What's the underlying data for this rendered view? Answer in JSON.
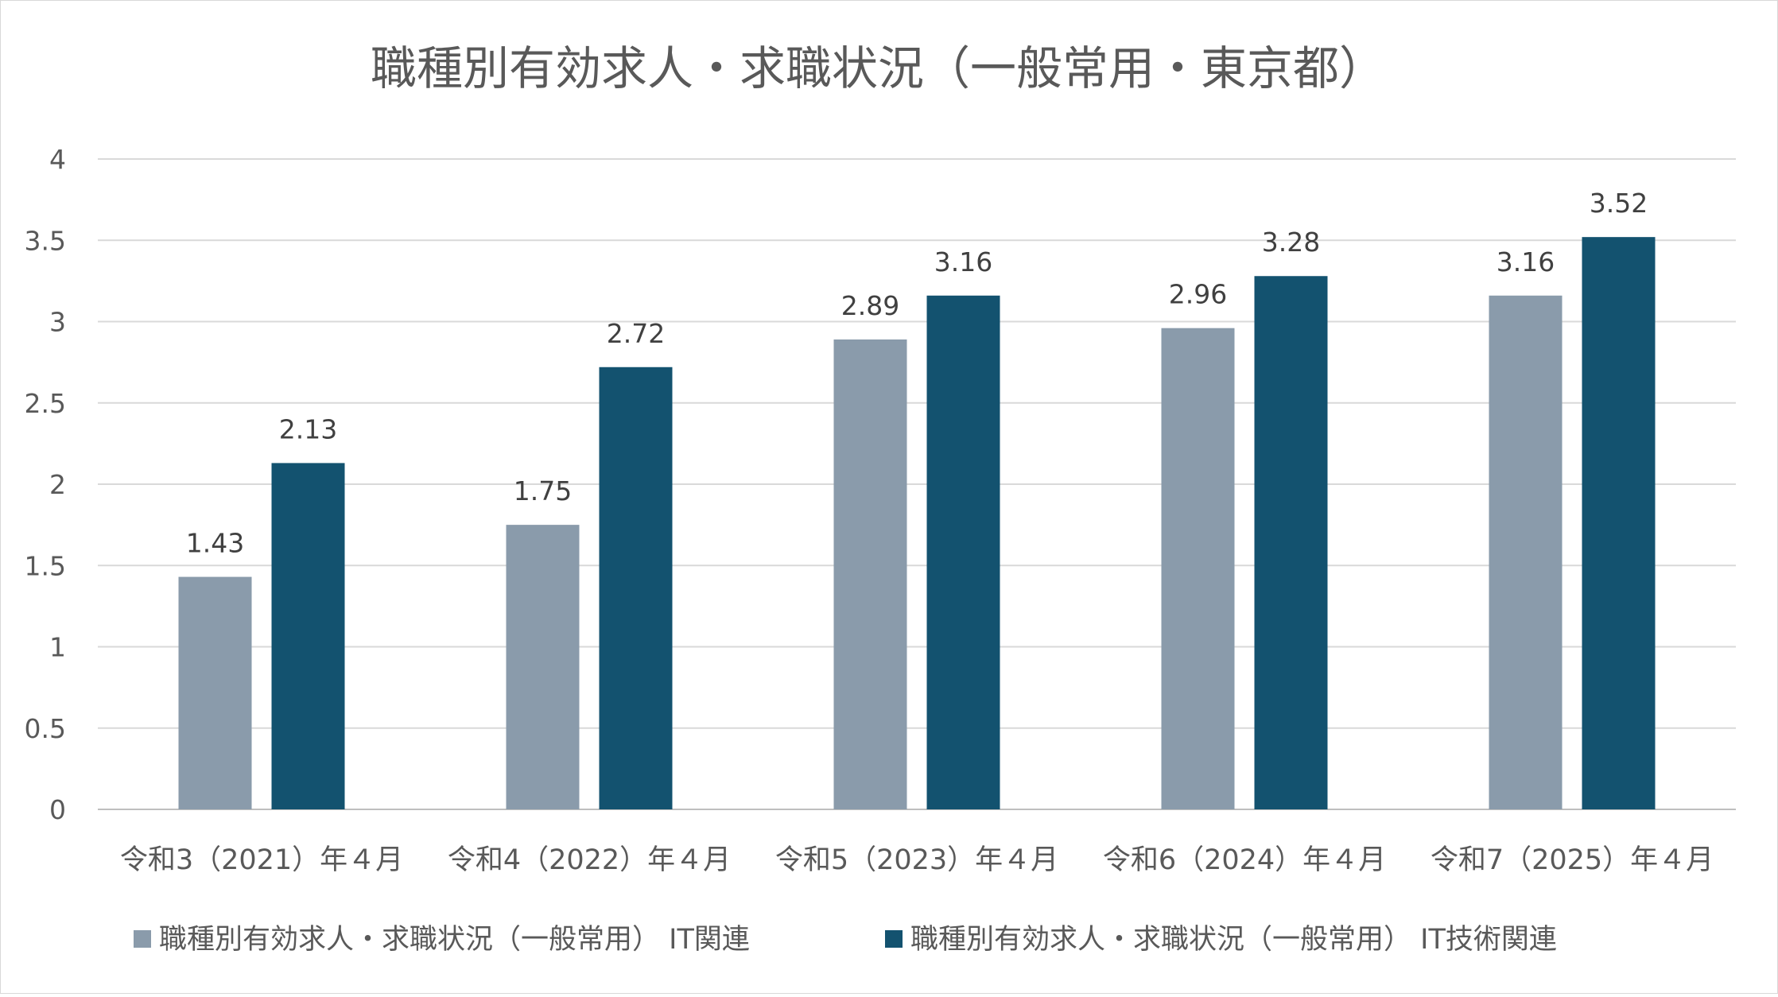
{
  "chart_data": {
    "type": "bar",
    "title": "職種別有効求人・求職状況（一般常用・東京都）",
    "xlabel": "",
    "ylabel": "",
    "categories": [
      "令和3（2021）年４月",
      "令和4（2022）年４月",
      "令和5（2023）年４月",
      "令和6（2024）年４月",
      "令和7（2025）年４月"
    ],
    "series": [
      {
        "name": "職種別有効求人・求職状況（一般常用） IT関連",
        "color": "#8a9bab",
        "values": [
          1.43,
          1.75,
          2.89,
          2.96,
          3.16
        ],
        "labels": [
          "1.43",
          "1.75",
          "2.89",
          "2.96",
          "3.16"
        ]
      },
      {
        "name": "職種別有効求人・求職状況（一般常用） IT技術関連",
        "color": "#13526f",
        "values": [
          2.13,
          2.72,
          3.16,
          3.28,
          3.52
        ],
        "labels": [
          "2.13",
          "2.72",
          "3.16",
          "3.28",
          "3.52"
        ]
      }
    ],
    "ylim": [
      0,
      4
    ],
    "yticks": [
      0,
      0.5,
      1,
      1.5,
      2,
      2.5,
      3,
      3.5,
      4
    ],
    "ytick_labels": [
      "0",
      "0.5",
      "1",
      "1.5",
      "2",
      "2.5",
      "3",
      "3.5",
      "4"
    ],
    "grid": true,
    "legend_position": "bottom"
  }
}
